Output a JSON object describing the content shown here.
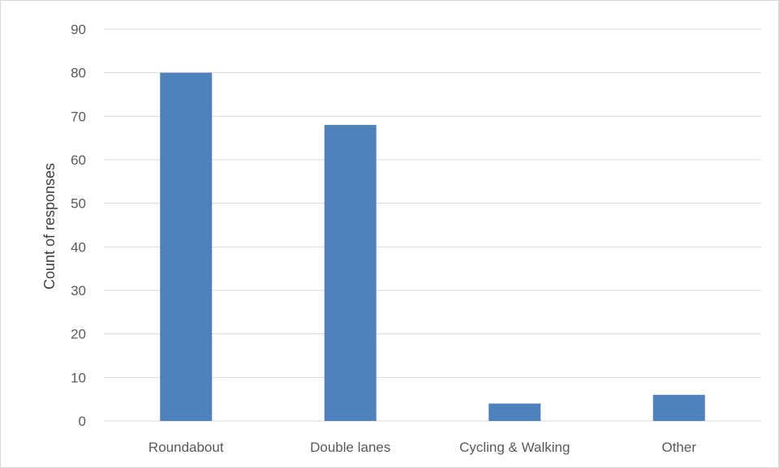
{
  "chart_data": {
    "type": "bar",
    "title": "",
    "xlabel": "",
    "ylabel": "Count of responses",
    "categories": [
      "Roundabout",
      "Double lanes",
      "Cycling & Walking",
      "Other"
    ],
    "values": [
      80,
      68,
      4,
      6
    ],
    "ylim": [
      0,
      90
    ],
    "yticks": [
      0,
      10,
      20,
      30,
      40,
      50,
      60,
      70,
      80,
      90
    ],
    "grid": true,
    "legend": "none",
    "bar_color": "#4f81bd",
    "grid_color": "#d9d9d9"
  }
}
